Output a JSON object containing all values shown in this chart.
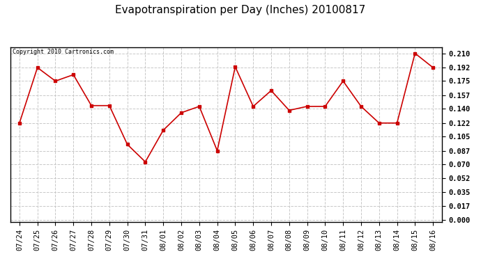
{
  "title": "Evapotranspiration per Day (Inches) 20100817",
  "copyright": "Copyright 2010 Cartronics.com",
  "x_labels": [
    "07/24",
    "07/25",
    "07/26",
    "07/27",
    "07/28",
    "07/29",
    "07/30",
    "07/31",
    "08/01",
    "08/02",
    "08/03",
    "08/04",
    "08/05",
    "08/06",
    "08/07",
    "08/08",
    "08/09",
    "08/10",
    "08/11",
    "08/12",
    "08/13",
    "08/14",
    "08/15",
    "08/16"
  ],
  "y_values": [
    0.122,
    0.192,
    0.175,
    0.183,
    0.144,
    0.144,
    0.095,
    0.073,
    0.113,
    0.135,
    0.143,
    0.087,
    0.193,
    0.143,
    0.163,
    0.138,
    0.143,
    0.143,
    0.175,
    0.143,
    0.122,
    0.122,
    0.21,
    0.192
  ],
  "y_ticks": [
    0.0,
    0.017,
    0.035,
    0.052,
    0.07,
    0.087,
    0.105,
    0.122,
    0.14,
    0.157,
    0.175,
    0.192,
    0.21
  ],
  "line_color": "#cc0000",
  "marker": "s",
  "marker_size": 3,
  "bg_color": "#ffffff",
  "grid_color": "#c8c8c8",
  "title_fontsize": 11,
  "copyright_fontsize": 6,
  "tick_fontsize": 7.5,
  "ylim": [
    -0.003,
    0.218
  ]
}
